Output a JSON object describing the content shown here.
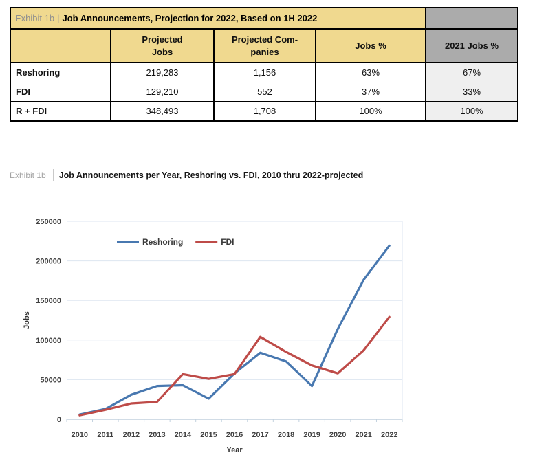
{
  "table": {
    "title_prefix": "Exhibit 1b",
    "title_separator": "|",
    "title": "Job Announcements, Projection for 2022, Based on 1H 2022",
    "columns": [
      "",
      "Projected\nJobs",
      "Projected Com-\npanies",
      "Jobs %",
      "2021 Jobs %"
    ],
    "rows": [
      {
        "label": "Reshoring",
        "projected_jobs": "219,283",
        "projected_companies": "1,156",
        "jobs_pct": "63%",
        "jobs_pct_2021": "67%"
      },
      {
        "label": "FDI",
        "projected_jobs": "129,210",
        "projected_companies": "552",
        "jobs_pct": "37%",
        "jobs_pct_2021": "33%"
      },
      {
        "label": "R + FDI",
        "projected_jobs": "348,493",
        "projected_companies": "1,708",
        "jobs_pct": "100%",
        "jobs_pct_2021": "100%"
      }
    ],
    "colors": {
      "tan_bg": "#F0D98F",
      "gray_header_bg": "#ABABAB",
      "gray_cell_bg": "#EFEFEF"
    }
  },
  "chart_heading": {
    "prefix": "Exhibit 1b",
    "title": "Job Announcements per Year, Reshoring vs. FDI, 2010 thru 2022-projected"
  },
  "chart_data": {
    "type": "line",
    "title": "Job Announcements per Year, Reshoring vs. FDI, 2010 thru 2022-projected",
    "x": [
      2010,
      2011,
      2012,
      2013,
      2014,
      2015,
      2016,
      2017,
      2018,
      2019,
      2020,
      2021,
      2022
    ],
    "series": [
      {
        "name": "Reshoring",
        "color": "#4878B0",
        "values": [
          6000,
          13000,
          31000,
          42000,
          43000,
          26000,
          58000,
          84000,
          73000,
          42000,
          114000,
          176000,
          219283
        ]
      },
      {
        "name": "FDI",
        "color": "#BE4B48",
        "values": [
          5000,
          12000,
          20000,
          22000,
          57000,
          51000,
          57000,
          104000,
          85000,
          68000,
          58000,
          87000,
          129210
        ]
      }
    ],
    "xlabel": "Year",
    "ylabel": "Jobs",
    "ylim": [
      0,
      250000
    ],
    "yticks": [
      0,
      50000,
      100000,
      150000,
      200000,
      250000
    ],
    "grid": true,
    "legend_position": "top-inside",
    "gridline_color": "#dde6f0",
    "axis_color": "#c2d1de"
  }
}
